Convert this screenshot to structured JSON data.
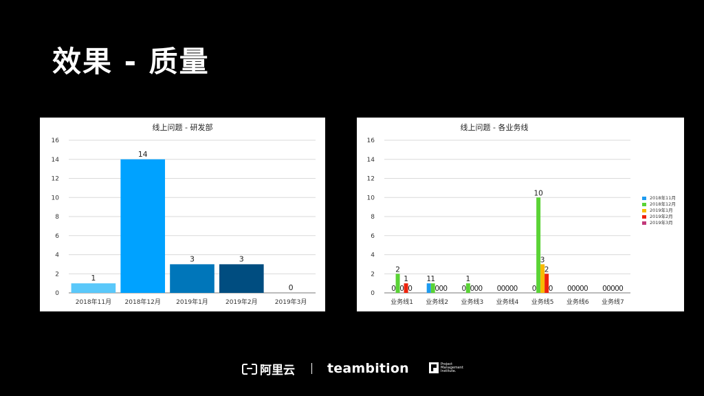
{
  "slide": {
    "title": "效果 - 质量"
  },
  "chart_data": [
    {
      "type": "bar",
      "title": "线上问题 - 研发部",
      "categories": [
        "2018年11月",
        "2018年12月",
        "2019年1月",
        "2019年2月",
        "2019年3月"
      ],
      "values": [
        1,
        14,
        3,
        3,
        0
      ],
      "colors": [
        "#5AC8FA",
        "#00A2FF",
        "#0076BA",
        "#004D80",
        "#8E8E93"
      ],
      "ylim": [
        0,
        16
      ],
      "yticks": [
        "0",
        "2",
        "4",
        "6",
        "8",
        "10",
        "12",
        "14",
        "16"
      ],
      "grid": true,
      "legend": "none",
      "data_labels": true
    },
    {
      "type": "bar",
      "title": "线上问题 - 各业务线",
      "categories": [
        "业务线1",
        "业务线2",
        "业务线3",
        "业务线4",
        "业务线5",
        "业务线6",
        "业务线7"
      ],
      "series": [
        {
          "name": "2018年11月",
          "color": "#1E9BF0",
          "values": [
            0,
            1,
            0,
            0,
            0,
            0,
            0
          ]
        },
        {
          "name": "2018年12月",
          "color": "#5AD335",
          "values": [
            2,
            1,
            1,
            0,
            10,
            0,
            0
          ]
        },
        {
          "name": "2019年1月",
          "color": "#F8BA00",
          "values": [
            0,
            0,
            0,
            0,
            3,
            0,
            0
          ]
        },
        {
          "name": "2019年2月",
          "color": "#EE220C",
          "values": [
            1,
            0,
            0,
            0,
            2,
            0,
            0
          ]
        },
        {
          "name": "2019年3月",
          "color": "#C2387A",
          "values": [
            0,
            0,
            0,
            0,
            0,
            0,
            0
          ]
        }
      ],
      "ylim": [
        0,
        16
      ],
      "yticks": [
        "0",
        "2",
        "4",
        "6",
        "8",
        "10",
        "12",
        "14",
        "16"
      ],
      "grid": true,
      "legend": "right",
      "data_labels": true
    }
  ],
  "footer": {
    "aliyun": "阿里云",
    "divider": "|",
    "teambition": "teambition",
    "pmi": "Project Management Institute."
  }
}
